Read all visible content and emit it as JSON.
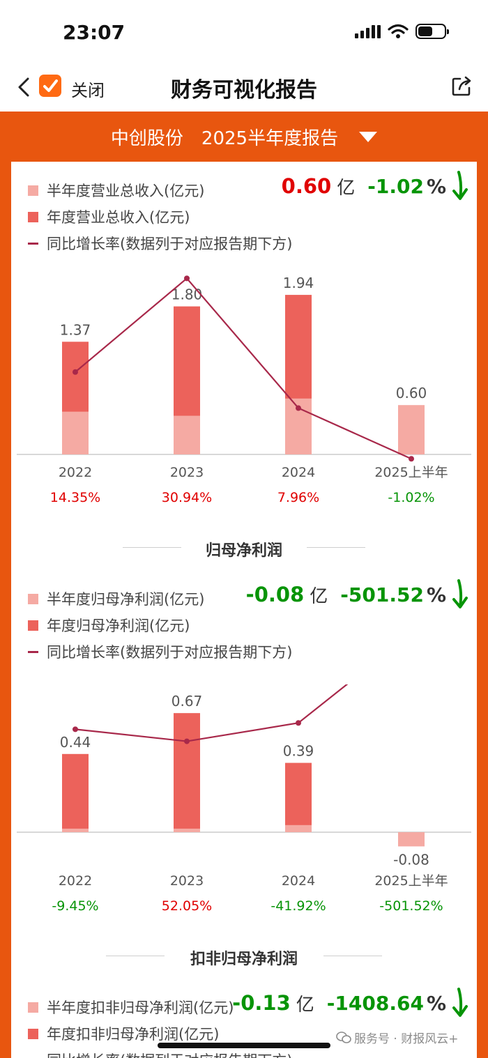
{
  "status_bar": {
    "time": "23:07"
  },
  "nav": {
    "close_label": "关闭",
    "title": "财务可视化报告"
  },
  "report": {
    "company": "中创股份",
    "period": "2025半年度报告"
  },
  "revenue": {
    "legend": {
      "half": "半年度营业总收入(亿元)",
      "annual": "年度营业总收入(亿元)",
      "growth": "同比增长率(数据列于对应报告期下方)"
    },
    "kpi": {
      "value": "0.60",
      "unit": "亿",
      "pct": "-1.02",
      "pct_unit": "%"
    },
    "colors": {
      "positive": "#e00000",
      "negative": "#079407"
    }
  },
  "net_profit": {
    "title": "归母净利润",
    "legend": {
      "half": "半年度归母净利润(亿元)",
      "annual": "年度归母净利润(亿元)",
      "growth": "同比增长率(数据列于对应报告期下方)"
    },
    "kpi": {
      "value": "-0.08",
      "unit": "亿",
      "pct": "-501.52",
      "pct_unit": "%"
    }
  },
  "deducted_profit": {
    "title": "扣非归母净利润",
    "legend": {
      "half": "半年度扣非归母净利润(亿元)",
      "annual": "年度扣非归母净利润(亿元)",
      "growth": "同比增长率(数据列于对应报告期下方)"
    },
    "kpi": {
      "value": "-0.13",
      "unit": "亿",
      "pct": "-1408.64",
      "pct_unit": "%"
    }
  },
  "watermark": "服务号 · 财报风云+",
  "chart_data": [
    {
      "type": "bar",
      "categories": [
        "2022",
        "2023",
        "2024",
        "2025上半年"
      ],
      "series": [
        {
          "name": "半年度营业总收入(亿元)",
          "values": [
            0.52,
            0.47,
            0.68,
            0.6
          ]
        },
        {
          "name": "年度营业总收入(亿元)",
          "values": [
            1.37,
            1.8,
            1.94,
            null
          ]
        },
        {
          "name": "同比增长率",
          "values": [
            14.35,
            30.94,
            7.96,
            -1.02
          ]
        }
      ],
      "value_labels": [
        "1.37",
        "1.80",
        "1.94",
        "0.60"
      ],
      "growth_labels": [
        "14.35%",
        "30.94%",
        "7.96%",
        "-1.02%"
      ],
      "ylim": [
        0,
        2.0
      ]
    },
    {
      "type": "bar",
      "categories": [
        "2022",
        "2023",
        "2024",
        "2025上半年"
      ],
      "series": [
        {
          "name": "半年度归母净利润(亿元)",
          "values": [
            0.02,
            0.02,
            0.04,
            -0.08
          ]
        },
        {
          "name": "年度归母净利润(亿元)",
          "values": [
            0.44,
            0.67,
            0.39,
            null
          ]
        },
        {
          "name": "同比增长率",
          "values": [
            -9.45,
            52.05,
            -41.92,
            -501.52
          ]
        }
      ],
      "value_labels": [
        "0.44",
        "0.67",
        "0.39",
        "-0.08"
      ],
      "growth_labels": [
        "-9.45%",
        "52.05%",
        "-41.92%",
        "-501.52%"
      ],
      "ylim": [
        -0.1,
        0.7
      ]
    }
  ]
}
